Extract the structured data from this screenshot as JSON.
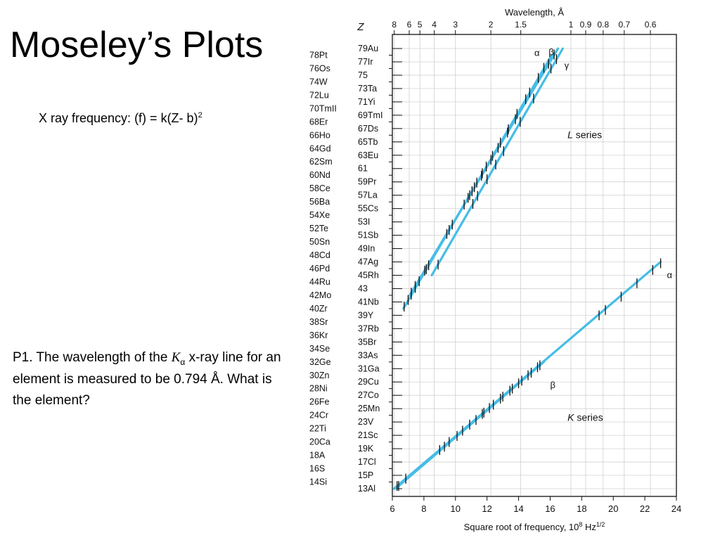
{
  "slide": {
    "title": "Moseley’s Plots",
    "formula_prefix": "X ray frequency:   (f) = k(Z- b)",
    "formula_sup": "2",
    "problem_part1": "P1. The wavelength of the ",
    "problem_k": "K",
    "problem_sub": "α",
    "problem_part2": " x-ray line for an element is measured to be 0.794 Å. What is the element?"
  },
  "chart_data": {
    "type": "line",
    "xlabel": "Square root of frequency, 10",
    "xlabel_sup": "8",
    "xlabel_unit": " Hz",
    "xlabel_unit_sup": "1/2",
    "x_ticks": [
      6,
      8,
      10,
      12,
      14,
      16,
      18,
      20,
      22,
      24
    ],
    "xlim": [
      6,
      24
    ],
    "ylim": [
      13,
      79
    ],
    "top_axis_label": "Wavelength, Å",
    "z_label": "Z",
    "wavelength_ticks": [
      {
        "label": "8",
        "value": 8
      },
      {
        "label": "6",
        "value": 6
      },
      {
        "label": "5",
        "value": 5
      },
      {
        "label": "4",
        "value": 4
      },
      {
        "label": "3",
        "value": 3
      },
      {
        "label": "2",
        "value": 2
      },
      {
        "label": "1.5",
        "value": 1.5
      },
      {
        "label": "1",
        "value": 1
      },
      {
        "label": "0.9",
        "value": 0.9
      },
      {
        "label": "0.8",
        "value": 0.8
      },
      {
        "label": "0.7",
        "value": 0.7
      },
      {
        "label": "0.6",
        "value": 0.6
      }
    ],
    "elements_left": [
      {
        "label": "78Pt",
        "z": 78
      },
      {
        "label": "76Os",
        "z": 76
      },
      {
        "label": "74W",
        "z": 74
      },
      {
        "label": "72Lu",
        "z": 72
      },
      {
        "label": "70TmII",
        "z": 70
      },
      {
        "label": "68Er",
        "z": 68
      },
      {
        "label": "66Ho",
        "z": 66
      },
      {
        "label": "64Gd",
        "z": 64
      },
      {
        "label": "62Sm",
        "z": 62
      },
      {
        "label": "60Nd",
        "z": 60
      },
      {
        "label": "58Ce",
        "z": 58
      },
      {
        "label": "56Ba",
        "z": 56
      },
      {
        "label": "54Xe",
        "z": 54
      },
      {
        "label": "52Te",
        "z": 52
      },
      {
        "label": "50Sn",
        "z": 50
      },
      {
        "label": "48Cd",
        "z": 48
      },
      {
        "label": "46Pd",
        "z": 46
      },
      {
        "label": "44Ru",
        "z": 44
      },
      {
        "label": "42Mo",
        "z": 42
      },
      {
        "label": "40Zr",
        "z": 40
      },
      {
        "label": "38Sr",
        "z": 38
      },
      {
        "label": "36Kr",
        "z": 36
      },
      {
        "label": "34Se",
        "z": 34
      },
      {
        "label": "32Ge",
        "z": 32
      },
      {
        "label": "30Zn",
        "z": 30
      },
      {
        "label": "28Ni",
        "z": 28
      },
      {
        "label": "26Fe",
        "z": 26
      },
      {
        "label": "24Cr",
        "z": 24
      },
      {
        "label": "22Ti",
        "z": 22
      },
      {
        "label": "20Ca",
        "z": 20
      },
      {
        "label": "18A",
        "z": 18
      },
      {
        "label": "16S",
        "z": 16
      },
      {
        "label": "14Si",
        "z": 14
      }
    ],
    "elements_right": [
      {
        "label": "79Au",
        "z": 79
      },
      {
        "label": "77Ir",
        "z": 77
      },
      {
        "label": "75",
        "z": 75
      },
      {
        "label": "73Ta",
        "z": 73
      },
      {
        "label": "71Yi",
        "z": 71
      },
      {
        "label": "69TmI",
        "z": 69
      },
      {
        "label": "67Ds",
        "z": 67
      },
      {
        "label": "65Tb",
        "z": 65
      },
      {
        "label": "63Eu",
        "z": 63
      },
      {
        "label": "61",
        "z": 61
      },
      {
        "label": "59Pr",
        "z": 59
      },
      {
        "label": "57La",
        "z": 57
      },
      {
        "label": "55Cs",
        "z": 55
      },
      {
        "label": "53I",
        "z": 53
      },
      {
        "label": "51Sb",
        "z": 51
      },
      {
        "label": "49In",
        "z": 49
      },
      {
        "label": "47Ag",
        "z": 47
      },
      {
        "label": "45Rh",
        "z": 45
      },
      {
        "label": "43",
        "z": 43
      },
      {
        "label": "41Nb",
        "z": 41
      },
      {
        "label": "39Y",
        "z": 39
      },
      {
        "label": "37Rb",
        "z": 37
      },
      {
        "label": "35Br",
        "z": 35
      },
      {
        "label": "33As",
        "z": 33
      },
      {
        "label": "31Ga",
        "z": 31
      },
      {
        "label": "29Cu",
        "z": 29
      },
      {
        "label": "27Co",
        "z": 27
      },
      {
        "label": "25Mn",
        "z": 25
      },
      {
        "label": "23V",
        "z": 23
      },
      {
        "label": "21Sc",
        "z": 21
      },
      {
        "label": "19K",
        "z": 19
      },
      {
        "label": "17Cl",
        "z": 17
      },
      {
        "label": "15P",
        "z": 15
      },
      {
        "label": "13Al",
        "z": 13
      }
    ],
    "series": [
      {
        "name": "α",
        "group": "L series",
        "x": [
          6.7,
          16.1
        ],
        "z": [
          40,
          78
        ],
        "markers": [
          [
            6.75,
            40.3
          ],
          [
            7.0,
            41.3
          ],
          [
            7.2,
            42.1
          ],
          [
            7.45,
            43.1
          ],
          [
            7.7,
            44.1
          ],
          [
            8.15,
            45.9
          ],
          [
            8.3,
            46.5
          ],
          [
            9.45,
            51.2
          ],
          [
            9.8,
            52.6
          ],
          [
            10.55,
            55.6
          ],
          [
            10.8,
            56.6
          ],
          [
            11.05,
            57.6
          ],
          [
            11.35,
            58.9
          ],
          [
            11.7,
            60.3
          ],
          [
            11.95,
            61.3
          ],
          [
            12.35,
            62.9
          ],
          [
            12.85,
            64.9
          ],
          [
            13.35,
            66.9
          ],
          [
            13.9,
            69.2
          ],
          [
            14.45,
            71.4
          ],
          [
            14.7,
            72.4
          ],
          [
            15.25,
            74.6
          ],
          [
            15.6,
            76.1
          ]
        ]
      },
      {
        "name": "β",
        "group": "L series",
        "x": [
          7.1,
          16.5
        ],
        "z": [
          42,
          79
        ],
        "markers": [
          [
            7.2,
            42.4
          ],
          [
            7.45,
            43.4
          ],
          [
            8.05,
            45.7
          ],
          [
            9.6,
            51.8
          ],
          [
            10.9,
            57.0
          ],
          [
            11.2,
            58.2
          ],
          [
            11.65,
            59.9
          ],
          [
            12.25,
            62.3
          ],
          [
            12.7,
            64.1
          ],
          [
            13.3,
            66.4
          ],
          [
            13.8,
            68.4
          ],
          [
            15.9,
            76.7
          ],
          [
            16.25,
            78.1
          ]
        ]
      },
      {
        "name": "γ",
        "group": "L series",
        "x": [
          8.5,
          16.8
        ],
        "z": [
          45,
          79
        ],
        "markers": [
          [
            8.9,
            46.6
          ],
          [
            11.1,
            55.7
          ],
          [
            11.4,
            56.9
          ],
          [
            12.0,
            59.4
          ],
          [
            12.55,
            61.6
          ],
          [
            13.05,
            63.6
          ],
          [
            14.1,
            68.0
          ],
          [
            14.95,
            71.5
          ],
          [
            16.05,
            76.0
          ],
          [
            16.4,
            77.4
          ]
        ]
      },
      {
        "name": "α",
        "group": "K series",
        "x": [
          6.1,
          23.0
        ],
        "z": [
          13,
          47
        ],
        "markers": [
          [
            6.3,
            13.4
          ],
          [
            6.85,
            14.5
          ],
          [
            9.0,
            18.8
          ],
          [
            9.6,
            20.0
          ],
          [
            10.45,
            21.7
          ],
          [
            10.9,
            22.6
          ],
          [
            11.7,
            24.2
          ],
          [
            12.15,
            25.1
          ],
          [
            12.85,
            26.5
          ],
          [
            13.45,
            27.7
          ],
          [
            14.0,
            28.8
          ],
          [
            14.6,
            30.0
          ],
          [
            15.2,
            31.2
          ],
          [
            19.1,
            39.0
          ],
          [
            19.5,
            39.8
          ],
          [
            20.5,
            41.8
          ],
          [
            21.5,
            43.8
          ],
          [
            22.5,
            45.8
          ],
          [
            23.0,
            46.8
          ]
        ]
      },
      {
        "name": "β",
        "group": "K series",
        "x": [
          6.2,
          15.6
        ],
        "z": [
          13,
          32
        ],
        "markers": [
          [
            6.4,
            13.4
          ],
          [
            9.3,
            19.3
          ],
          [
            10.1,
            20.9
          ],
          [
            11.3,
            23.3
          ],
          [
            11.8,
            24.4
          ],
          [
            12.4,
            25.6
          ],
          [
            13.0,
            26.8
          ],
          [
            13.6,
            28.0
          ],
          [
            14.2,
            29.2
          ],
          [
            14.8,
            30.4
          ],
          [
            15.35,
            31.5
          ]
        ]
      }
    ],
    "annotations": [
      {
        "text": "α",
        "x": 15.0,
        "z": 78.3
      },
      {
        "text": "β",
        "x": 15.9,
        "z": 78.4
      },
      {
        "text": "γ",
        "x": 16.9,
        "z": 76.4
      },
      {
        "text": "L series",
        "x": 17.1,
        "z": 66.0
      },
      {
        "text": "α",
        "x": 23.4,
        "z": 45.0
      },
      {
        "text": "β",
        "x": 16.0,
        "z": 28.5
      },
      {
        "text": "K series",
        "x": 17.1,
        "z": 23.6
      }
    ]
  }
}
